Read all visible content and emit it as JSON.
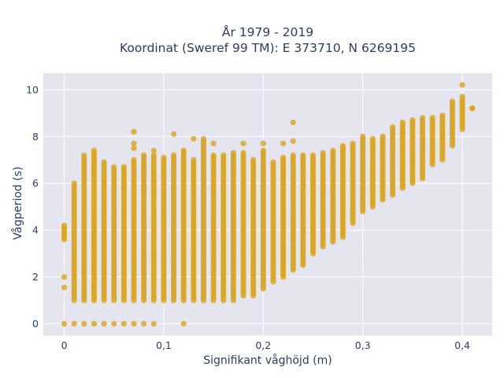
{
  "chart_data": {
    "type": "scatter",
    "title_line1": "År 1979 - 2019",
    "title_line2": "Koordinat (Sweref 99 TM): E 373710, N 6269195",
    "xlabel": "Signifikant våghöjd (m)",
    "ylabel": "Vågperiod (s)",
    "xlim": [
      -0.021,
      0.43
    ],
    "ylim": [
      -0.5,
      10.7
    ],
    "xticks": [
      0,
      0.1,
      0.2,
      0.3,
      0.4
    ],
    "xtick_labels": [
      "0",
      "0,1",
      "0,2",
      "0,3",
      "0,4"
    ],
    "yticks": [
      0,
      2,
      4,
      6,
      8,
      10
    ],
    "ytick_labels": [
      "0",
      "2",
      "4",
      "6",
      "8",
      "10"
    ],
    "grid": true,
    "legend": "none",
    "marker_color": "#DAA520",
    "plot_background": "#E5E5EF",
    "series": [
      {
        "columns": [
          {
            "x": 0.0,
            "range": [
              3.6,
              4.2
            ],
            "extra": [
              1.55,
              2.0
            ]
          },
          {
            "x": 0.01,
            "range": [
              1.0,
              6.0
            ]
          },
          {
            "x": 0.02,
            "range": [
              1.0,
              7.2
            ]
          },
          {
            "x": 0.03,
            "range": [
              1.0,
              7.4
            ]
          },
          {
            "x": 0.04,
            "range": [
              1.0,
              6.9
            ]
          },
          {
            "x": 0.05,
            "range": [
              1.0,
              6.7
            ]
          },
          {
            "x": 0.06,
            "range": [
              1.0,
              6.7
            ]
          },
          {
            "x": 0.07,
            "range": [
              1.0,
              7.0
            ],
            "extra": [
              7.5,
              7.7,
              8.2
            ]
          },
          {
            "x": 0.08,
            "range": [
              1.0,
              7.2
            ]
          },
          {
            "x": 0.09,
            "range": [
              1.0,
              7.2
            ],
            "extra": [
              7.4
            ]
          },
          {
            "x": 0.1,
            "range": [
              1.0,
              7.1
            ]
          },
          {
            "x": 0.11,
            "range": [
              1.0,
              7.2
            ],
            "extra": [
              8.1
            ]
          },
          {
            "x": 0.12,
            "range": [
              1.0,
              7.4
            ]
          },
          {
            "x": 0.13,
            "range": [
              1.0,
              7.0
            ],
            "extra": [
              7.9
            ]
          },
          {
            "x": 0.14,
            "range": [
              1.0,
              7.9
            ]
          },
          {
            "x": 0.15,
            "range": [
              1.0,
              7.2
            ],
            "extra": [
              7.7
            ]
          },
          {
            "x": 0.16,
            "range": [
              1.0,
              7.2
            ]
          },
          {
            "x": 0.17,
            "range": [
              1.0,
              7.3
            ]
          },
          {
            "x": 0.18,
            "range": [
              1.2,
              7.3
            ],
            "extra": [
              7.7
            ]
          },
          {
            "x": 0.19,
            "range": [
              1.2,
              7.0
            ]
          },
          {
            "x": 0.2,
            "range": [
              1.5,
              7.4
            ],
            "extra": [
              7.7
            ]
          },
          {
            "x": 0.21,
            "range": [
              1.8,
              6.9
            ]
          },
          {
            "x": 0.22,
            "range": [
              2.0,
              7.1
            ],
            "extra": [
              7.7
            ]
          },
          {
            "x": 0.23,
            "range": [
              2.3,
              7.2
            ],
            "extra": [
              7.8,
              8.6
            ]
          },
          {
            "x": 0.24,
            "range": [
              2.5,
              7.2
            ]
          },
          {
            "x": 0.25,
            "range": [
              3.0,
              7.2
            ]
          },
          {
            "x": 0.26,
            "range": [
              3.3,
              7.3
            ]
          },
          {
            "x": 0.27,
            "range": [
              3.5,
              7.4
            ]
          },
          {
            "x": 0.28,
            "range": [
              3.7,
              7.6
            ]
          },
          {
            "x": 0.29,
            "range": [
              4.3,
              7.7
            ]
          },
          {
            "x": 0.3,
            "range": [
              4.8,
              8.0
            ]
          },
          {
            "x": 0.31,
            "range": [
              5.0,
              7.9
            ]
          },
          {
            "x": 0.32,
            "range": [
              5.3,
              8.0
            ]
          },
          {
            "x": 0.33,
            "range": [
              5.5,
              8.4
            ]
          },
          {
            "x": 0.34,
            "range": [
              5.8,
              8.6
            ]
          },
          {
            "x": 0.35,
            "range": [
              6.0,
              8.7
            ]
          },
          {
            "x": 0.36,
            "range": [
              6.2,
              8.8
            ]
          },
          {
            "x": 0.37,
            "range": [
              6.8,
              8.8
            ]
          },
          {
            "x": 0.38,
            "range": [
              7.0,
              8.9
            ]
          },
          {
            "x": 0.39,
            "range": [
              7.6,
              9.5
            ]
          },
          {
            "x": 0.4,
            "range": [
              8.3,
              9.7
            ],
            "extra": [
              10.2
            ]
          },
          {
            "x": 0.41,
            "range": [
              9.2,
              9.2
            ]
          }
        ],
        "zero_row": {
          "y": 0,
          "x": [
            0.0,
            0.01,
            0.02,
            0.03,
            0.04,
            0.05,
            0.06,
            0.07,
            0.08,
            0.09,
            0.12
          ]
        },
        "step": 0.1
      }
    ]
  }
}
